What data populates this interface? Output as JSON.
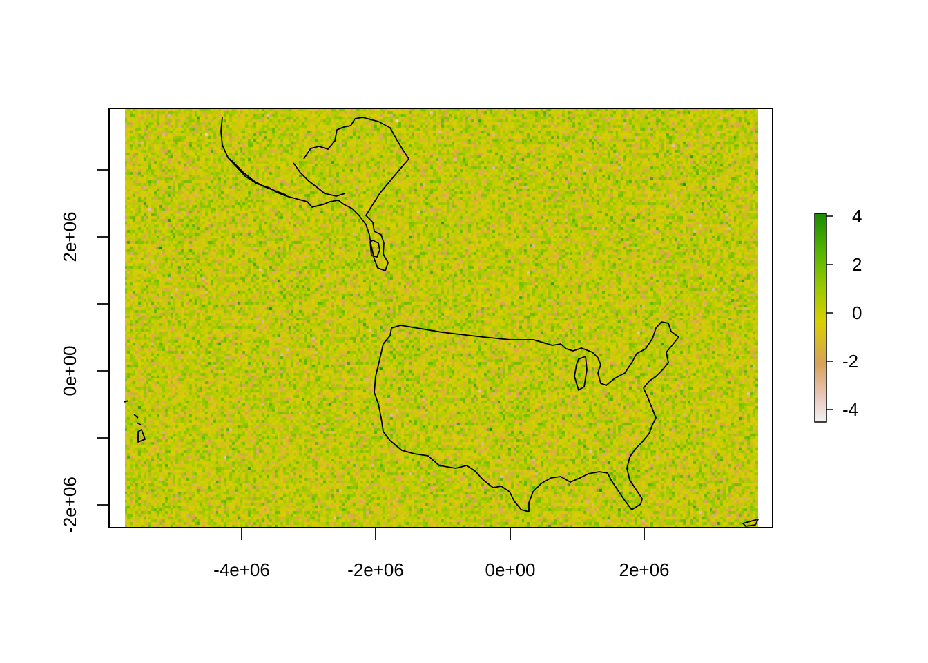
{
  "chart_data": {
    "type": "heatmap",
    "title": "",
    "xlabel": "",
    "ylabel": "",
    "x_ticks": [
      "-4e+06",
      "-2e+06",
      "0e+00",
      "2e+06"
    ],
    "y_ticks": [
      "-2e+06",
      "0e+00",
      "2e+06"
    ],
    "xlim": [
      -5700000,
      3700000
    ],
    "ylim": [
      -2300000,
      3900000
    ],
    "grid": false,
    "value_range": [
      -4.6,
      4.2
    ],
    "legend": {
      "placement": "right",
      "labels": [
        "4",
        "2",
        "0",
        "-2",
        "-4"
      ],
      "values": [
        4,
        2,
        0,
        -2,
        -4
      ],
      "colors": [
        "#f2f2f2",
        "#e8c8bd",
        "#d8a15a",
        "#d9d000",
        "#9ac900",
        "#53b400",
        "#1a8a00"
      ]
    },
    "raster": {
      "cells_x": 236,
      "cells_y": 152,
      "distribution": "standard normal random noise"
    }
  }
}
